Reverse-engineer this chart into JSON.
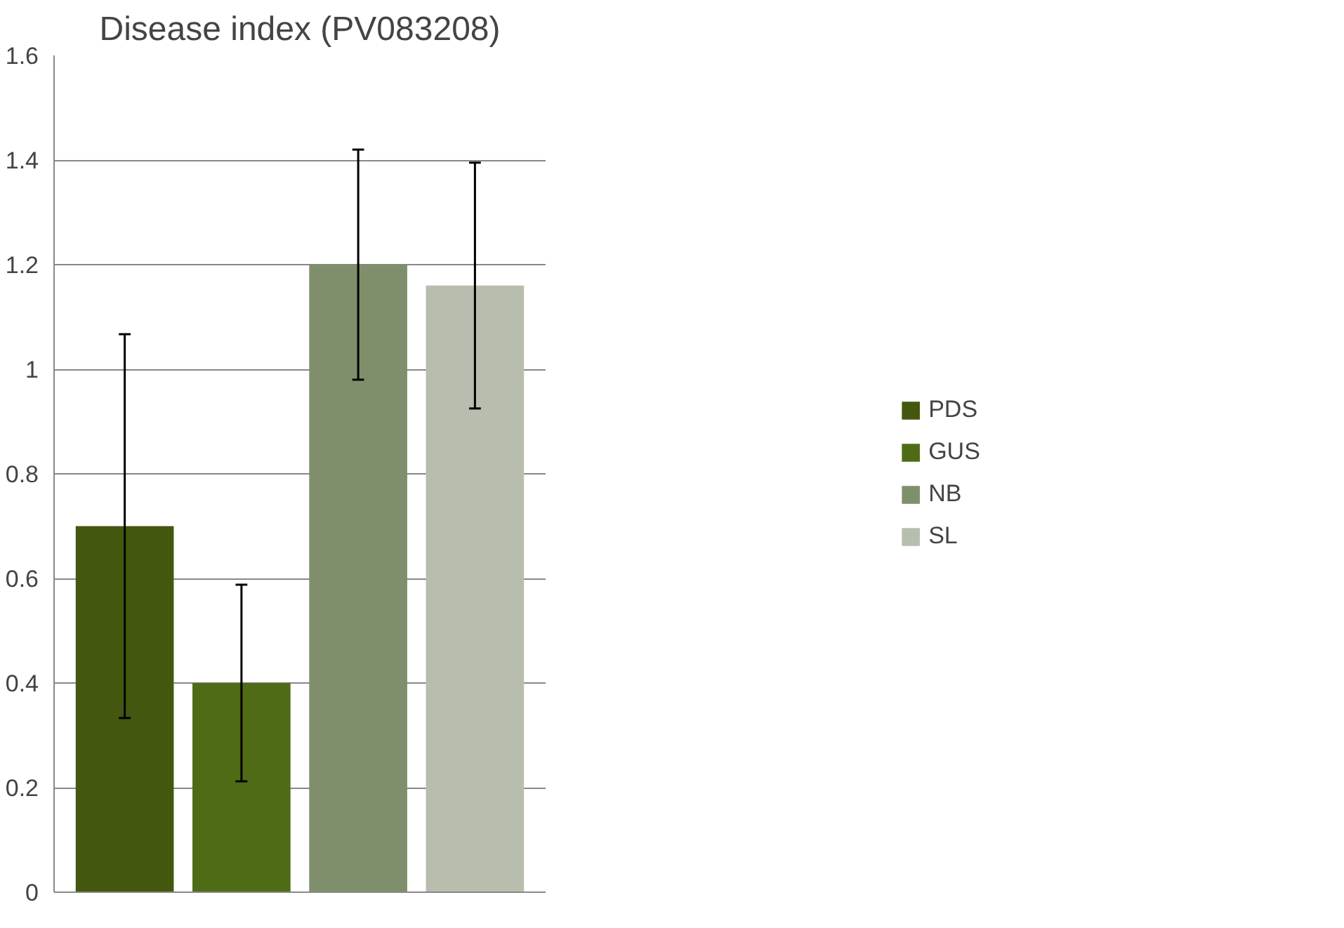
{
  "chart_data": {
    "type": "bar",
    "title": "Disease index (PV083208)",
    "categories": [
      null
    ],
    "series": [
      {
        "name": "PDS",
        "color": "#43570f",
        "values": [
          0.7
        ],
        "errors": [
          0.367
        ]
      },
      {
        "name": "GUS",
        "color": "#4f6b16",
        "values": [
          0.4
        ],
        "errors": [
          0.188
        ]
      },
      {
        "name": "NB",
        "color": "#7f8f6b",
        "values": [
          1.2
        ],
        "errors": [
          0.22
        ]
      },
      {
        "name": "SL",
        "color": "#b8beae",
        "values": [
          1.16
        ],
        "errors": [
          0.235
        ]
      }
    ],
    "ylim": [
      0,
      1.6
    ],
    "yticks": [
      0,
      0.2,
      0.4,
      0.6,
      0.8,
      1,
      1.2,
      1.4,
      1.6
    ],
    "grid": "y",
    "legend": "right"
  }
}
